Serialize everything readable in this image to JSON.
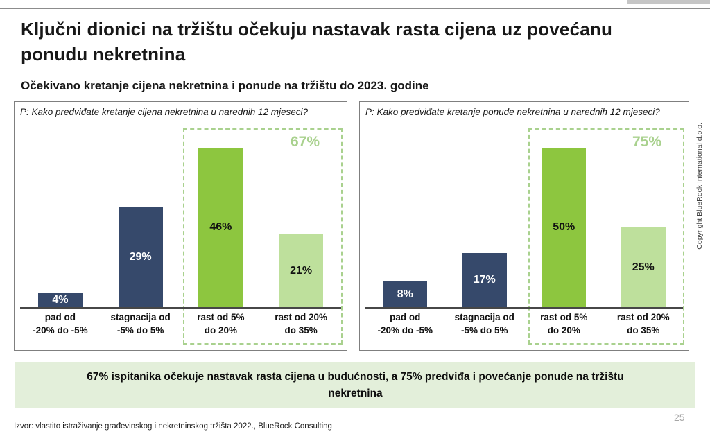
{
  "page": {
    "title_lines": [
      "Ključni dionici na tržištu očekuju nastavak rasta cijena uz povećanu",
      "ponudu nekretnina"
    ],
    "subtitle": "Očekivano kretanje cijena nekretnina i ponude na tržištu do 2023. godine",
    "callout_lines": [
      "67% ispitanika očekuje nastavak rasta cijena u budućnosti, a 75% predviđa i povećanje ponude na tržištu",
      "nekretnina"
    ],
    "source": "Izvor: vlastito istraživanje građevinskog i nekretninskog tržišta 2022., BlueRock Consulting",
    "page_number": "25",
    "copyright_vertical": "Copyright BlueRock International d.o.o."
  },
  "colors": {
    "bar_dark_blue": "#36496B",
    "bar_green": "#8DC63F",
    "bar_light_green": "#BEE09C",
    "highlight_green": "#A9D18E",
    "callout_bg": "#E3EFDA",
    "axis": "#474747"
  },
  "chart_data": [
    {
      "type": "bar",
      "title": "P: Kako predviđate kretanje cijena nekretnina u narednih 12 mjeseci?",
      "categories": [
        "pad od -20% do -5%",
        "stagnacija od -5% do 5%",
        "rast od 5% do 20%",
        "rast od 20% do 35%"
      ],
      "category_lines": [
        [
          "pad od",
          "-20% do -5%"
        ],
        [
          "stagnacija od",
          "-5% do 5%"
        ],
        [
          "rast od 5%",
          "do 20%"
        ],
        [
          "rast od 20%",
          "do 35%"
        ]
      ],
      "values": [
        4,
        29,
        46,
        21
      ],
      "value_labels": [
        "4%",
        "29%",
        "46%",
        "21%"
      ],
      "unit": "%",
      "ylim": [
        0,
        50
      ],
      "grid": false,
      "bar_colors": [
        "#36496B",
        "#36496B",
        "#8DC63F",
        "#BEE09C"
      ],
      "value_label_colors": [
        "#FFFFFF",
        "#FFFFFF",
        "#111111",
        "#111111"
      ],
      "highlight": {
        "label": "67%",
        "covers": [
          "rast od 5% do 20%",
          "rast od 20% do 35%"
        ]
      }
    },
    {
      "type": "bar",
      "title": "P: Kako predviđate kretanje ponude nekretnina u narednih 12 mjeseci?",
      "categories": [
        "pad od -20% do -5%",
        "stagnacija od -5% do 5%",
        "rast od 5% do 20%",
        "rast od 20% do 35%"
      ],
      "category_lines": [
        [
          "pad od",
          "-20% do -5%"
        ],
        [
          "stagnacija od",
          "-5% do 5%"
        ],
        [
          "rast od 5%",
          "do 20%"
        ],
        [
          "rast od 20%",
          "do 35%"
        ]
      ],
      "values": [
        8,
        17,
        50,
        25
      ],
      "value_labels": [
        "8%",
        "17%",
        "50%",
        "25%"
      ],
      "unit": "%",
      "ylim": [
        0,
        50
      ],
      "grid": false,
      "bar_colors": [
        "#36496B",
        "#36496B",
        "#8DC63F",
        "#BEE09C"
      ],
      "value_label_colors": [
        "#FFFFFF",
        "#FFFFFF",
        "#111111",
        "#111111"
      ],
      "highlight": {
        "label": "75%",
        "covers": [
          "rast od 5% do 20%",
          "rast od 20% do 35%"
        ]
      }
    }
  ]
}
